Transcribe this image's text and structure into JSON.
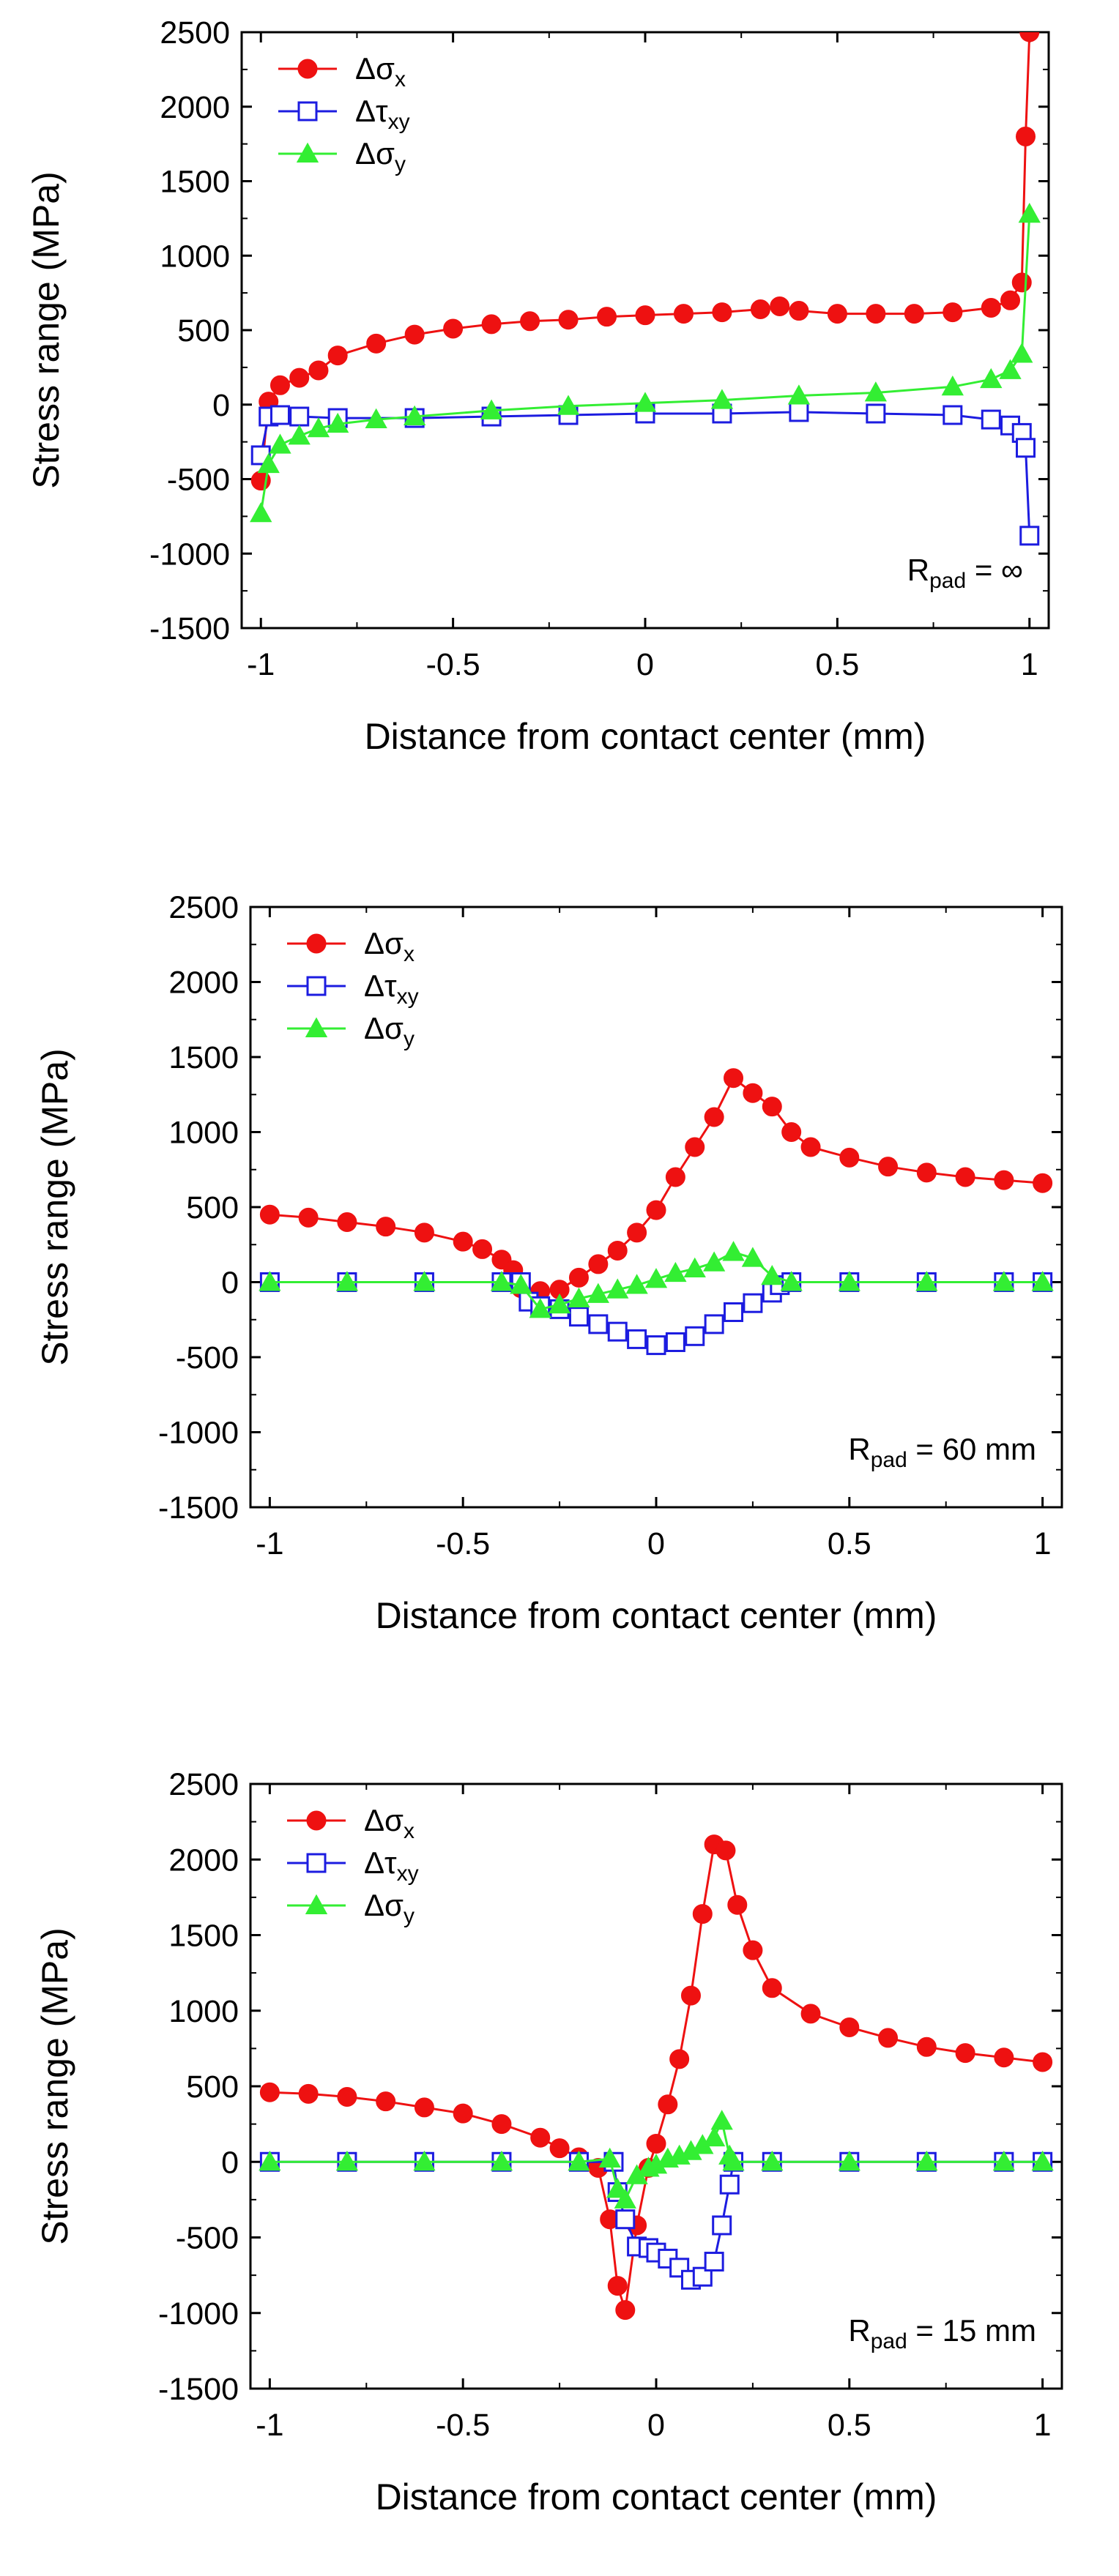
{
  "colors": {
    "sigma_x": "#ee1111",
    "tau_xy": "#1c1ce0",
    "sigma_y": "#33ee33",
    "axis": "#000000"
  },
  "chart_data": [
    {
      "type": "line",
      "xlabel": "Distance from contact center (mm)",
      "ylabel": "Stress range (MPa)",
      "xlim": [
        -1.05,
        1.05
      ],
      "ylim": [
        -1500,
        2500
      ],
      "xticks": [
        -1,
        -0.5,
        0,
        0.5,
        1
      ],
      "xtick_labels": [
        "-1",
        "-0.5",
        "0",
        "0.5",
        "1"
      ],
      "yticks": [
        2500,
        2000,
        1500,
        1000,
        500,
        0,
        -500,
        -1000,
        -1500
      ],
      "ytick_labels": [
        "2500",
        "2000",
        "1500",
        "1000",
        "500",
        "0",
        "-500",
        "-1000",
        "-1500"
      ],
      "annotation": {
        "prefix": "R",
        "sub": "pad",
        "suffix": " = ∞"
      },
      "series": [
        {
          "name": "Δσ",
          "sub": "x",
          "marker": "circle",
          "color": "#ee1111",
          "x": [
            -1.0,
            -0.98,
            -0.95,
            -0.9,
            -0.85,
            -0.8,
            -0.7,
            -0.6,
            -0.5,
            -0.4,
            -0.3,
            -0.2,
            -0.1,
            0.0,
            0.1,
            0.2,
            0.3,
            0.35,
            0.4,
            0.5,
            0.6,
            0.7,
            0.8,
            0.9,
            0.95,
            0.98,
            0.99,
            1.0
          ],
          "y": [
            -510,
            20,
            130,
            180,
            230,
            330,
            410,
            470,
            510,
            540,
            560,
            570,
            590,
            600,
            610,
            620,
            640,
            660,
            630,
            610,
            610,
            610,
            620,
            650,
            700,
            820,
            1800,
            2500
          ]
        },
        {
          "name": "Δτ",
          "sub": "xy",
          "marker": "square",
          "color": "#1c1ce0",
          "x": [
            -1.0,
            -0.98,
            -0.95,
            -0.9,
            -0.8,
            -0.6,
            -0.4,
            -0.2,
            0.0,
            0.2,
            0.4,
            0.6,
            0.8,
            0.9,
            0.95,
            0.98,
            0.99,
            1.0
          ],
          "y": [
            -340,
            -80,
            -70,
            -80,
            -90,
            -90,
            -80,
            -70,
            -60,
            -60,
            -50,
            -60,
            -70,
            -100,
            -140,
            -190,
            -290,
            -880
          ]
        },
        {
          "name": "Δσ",
          "sub": "y",
          "marker": "triangle",
          "color": "#33ee33",
          "x": [
            -1.0,
            -0.98,
            -0.95,
            -0.9,
            -0.85,
            -0.8,
            -0.7,
            -0.6,
            -0.4,
            -0.2,
            0.0,
            0.2,
            0.4,
            0.6,
            0.8,
            0.9,
            0.95,
            0.98,
            1.0
          ],
          "y": [
            -730,
            -400,
            -270,
            -210,
            -160,
            -130,
            -100,
            -80,
            -40,
            -10,
            10,
            30,
            60,
            80,
            120,
            170,
            230,
            340,
            1280
          ]
        }
      ]
    },
    {
      "type": "line",
      "xlabel": "Distance from contact center (mm)",
      "ylabel": "Stress range (MPa)",
      "xlim": [
        -1.05,
        1.05
      ],
      "ylim": [
        -1500,
        2500
      ],
      "xticks": [
        -1,
        -0.5,
        0,
        0.5,
        1
      ],
      "xtick_labels": [
        "-1",
        "-0.5",
        "0",
        "0.5",
        "1"
      ],
      "yticks": [
        2500,
        2000,
        1500,
        1000,
        500,
        0,
        -500,
        -1000,
        -1500
      ],
      "ytick_labels": [
        "2500",
        "2000",
        "1500",
        "1000",
        "500",
        "0",
        "-500",
        "-1000",
        "-1500"
      ],
      "annotation": {
        "prefix": "R",
        "sub": "pad",
        "suffix": " = 60 mm"
      },
      "series": [
        {
          "name": "Δσ",
          "sub": "x",
          "marker": "circle",
          "color": "#ee1111",
          "x": [
            -1.0,
            -0.9,
            -0.8,
            -0.7,
            -0.6,
            -0.5,
            -0.45,
            -0.4,
            -0.37,
            -0.35,
            -0.3,
            -0.25,
            -0.2,
            -0.15,
            -0.1,
            -0.05,
            0.0,
            0.05,
            0.1,
            0.15,
            0.2,
            0.25,
            0.3,
            0.35,
            0.4,
            0.5,
            0.6,
            0.7,
            0.8,
            0.9,
            1.0
          ],
          "y": [
            450,
            430,
            400,
            370,
            330,
            270,
            220,
            150,
            80,
            -40,
            -60,
            -50,
            30,
            120,
            210,
            330,
            480,
            700,
            900,
            1100,
            1360,
            1260,
            1170,
            1000,
            900,
            830,
            770,
            730,
            700,
            680,
            660
          ]
        },
        {
          "name": "Δτ",
          "sub": "xy",
          "marker": "square",
          "color": "#1c1ce0",
          "x": [
            -1.0,
            -0.8,
            -0.6,
            -0.4,
            -0.35,
            -0.33,
            -0.3,
            -0.25,
            -0.2,
            -0.15,
            -0.1,
            -0.05,
            0.0,
            0.05,
            0.1,
            0.15,
            0.2,
            0.25,
            0.3,
            0.32,
            0.35,
            0.5,
            0.7,
            0.9,
            1.0
          ],
          "y": [
            0,
            0,
            0,
            0,
            0,
            -130,
            -160,
            -180,
            -230,
            -280,
            -330,
            -380,
            -420,
            -400,
            -360,
            -280,
            -200,
            -140,
            -70,
            -20,
            0,
            0,
            0,
            0,
            0
          ]
        },
        {
          "name": "Δσ",
          "sub": "y",
          "marker": "triangle",
          "color": "#33ee33",
          "x": [
            -1.0,
            -0.8,
            -0.6,
            -0.4,
            -0.35,
            -0.3,
            -0.25,
            -0.2,
            -0.15,
            -0.1,
            -0.05,
            0.0,
            0.05,
            0.1,
            0.15,
            0.2,
            0.25,
            0.3,
            0.35,
            0.5,
            0.7,
            0.9,
            1.0
          ],
          "y": [
            0,
            0,
            0,
            0,
            -20,
            -180,
            -150,
            -110,
            -80,
            -50,
            -20,
            20,
            60,
            90,
            130,
            200,
            160,
            40,
            0,
            0,
            0,
            0,
            0
          ]
        }
      ]
    },
    {
      "type": "line",
      "xlabel": "Distance from contact center (mm)",
      "ylabel": "Stress range (MPa)",
      "xlim": [
        -1.05,
        1.05
      ],
      "ylim": [
        -1500,
        2500
      ],
      "xticks": [
        -1,
        -0.5,
        0,
        0.5,
        1
      ],
      "xtick_labels": [
        "-1",
        "-0.5",
        "0",
        "0.5",
        "1"
      ],
      "yticks": [
        2500,
        2000,
        1500,
        1000,
        500,
        0,
        -500,
        -1000,
        -1500
      ],
      "ytick_labels": [
        "2500",
        "2000",
        "1500",
        "1000",
        "500",
        "0",
        "-500",
        "-1000",
        "-1500"
      ],
      "annotation": {
        "prefix": "R",
        "sub": "pad",
        "suffix": " = 15 mm"
      },
      "series": [
        {
          "name": "Δσ",
          "sub": "x",
          "marker": "circle",
          "color": "#ee1111",
          "x": [
            -1.0,
            -0.9,
            -0.8,
            -0.7,
            -0.6,
            -0.5,
            -0.4,
            -0.3,
            -0.25,
            -0.2,
            -0.15,
            -0.12,
            -0.1,
            -0.08,
            -0.05,
            -0.02,
            0.0,
            0.03,
            0.06,
            0.09,
            0.12,
            0.15,
            0.18,
            0.21,
            0.25,
            0.3,
            0.4,
            0.5,
            0.6,
            0.7,
            0.8,
            0.9,
            1.0
          ],
          "y": [
            460,
            450,
            430,
            400,
            360,
            320,
            250,
            160,
            90,
            30,
            -40,
            -380,
            -820,
            -980,
            -420,
            -40,
            120,
            380,
            680,
            1100,
            1640,
            2100,
            2060,
            1700,
            1400,
            1150,
            980,
            890,
            820,
            760,
            720,
            690,
            660
          ]
        },
        {
          "name": "Δτ",
          "sub": "xy",
          "marker": "square",
          "color": "#1c1ce0",
          "x": [
            -1.0,
            -0.8,
            -0.6,
            -0.4,
            -0.2,
            -0.11,
            -0.1,
            -0.08,
            -0.05,
            -0.02,
            0.0,
            0.03,
            0.06,
            0.09,
            0.12,
            0.15,
            0.17,
            0.19,
            0.2,
            0.3,
            0.5,
            0.7,
            0.9,
            1.0
          ],
          "y": [
            0,
            0,
            0,
            0,
            0,
            0,
            -200,
            -380,
            -560,
            -570,
            -600,
            -640,
            -700,
            -780,
            -760,
            -660,
            -420,
            -150,
            0,
            0,
            0,
            0,
            0,
            0
          ]
        },
        {
          "name": "Δσ",
          "sub": "y",
          "marker": "triangle",
          "color": "#33ee33",
          "x": [
            -1.0,
            -0.8,
            -0.6,
            -0.4,
            -0.2,
            -0.12,
            -0.1,
            -0.08,
            -0.05,
            -0.02,
            0.0,
            0.03,
            0.06,
            0.09,
            0.12,
            0.15,
            0.17,
            0.19,
            0.2,
            0.3,
            0.5,
            0.7,
            0.9,
            1.0
          ],
          "y": [
            0,
            0,
            0,
            0,
            0,
            20,
            -180,
            -250,
            -90,
            -40,
            -20,
            20,
            40,
            70,
            110,
            160,
            270,
            40,
            0,
            0,
            0,
            0,
            0,
            0
          ]
        }
      ]
    }
  ]
}
